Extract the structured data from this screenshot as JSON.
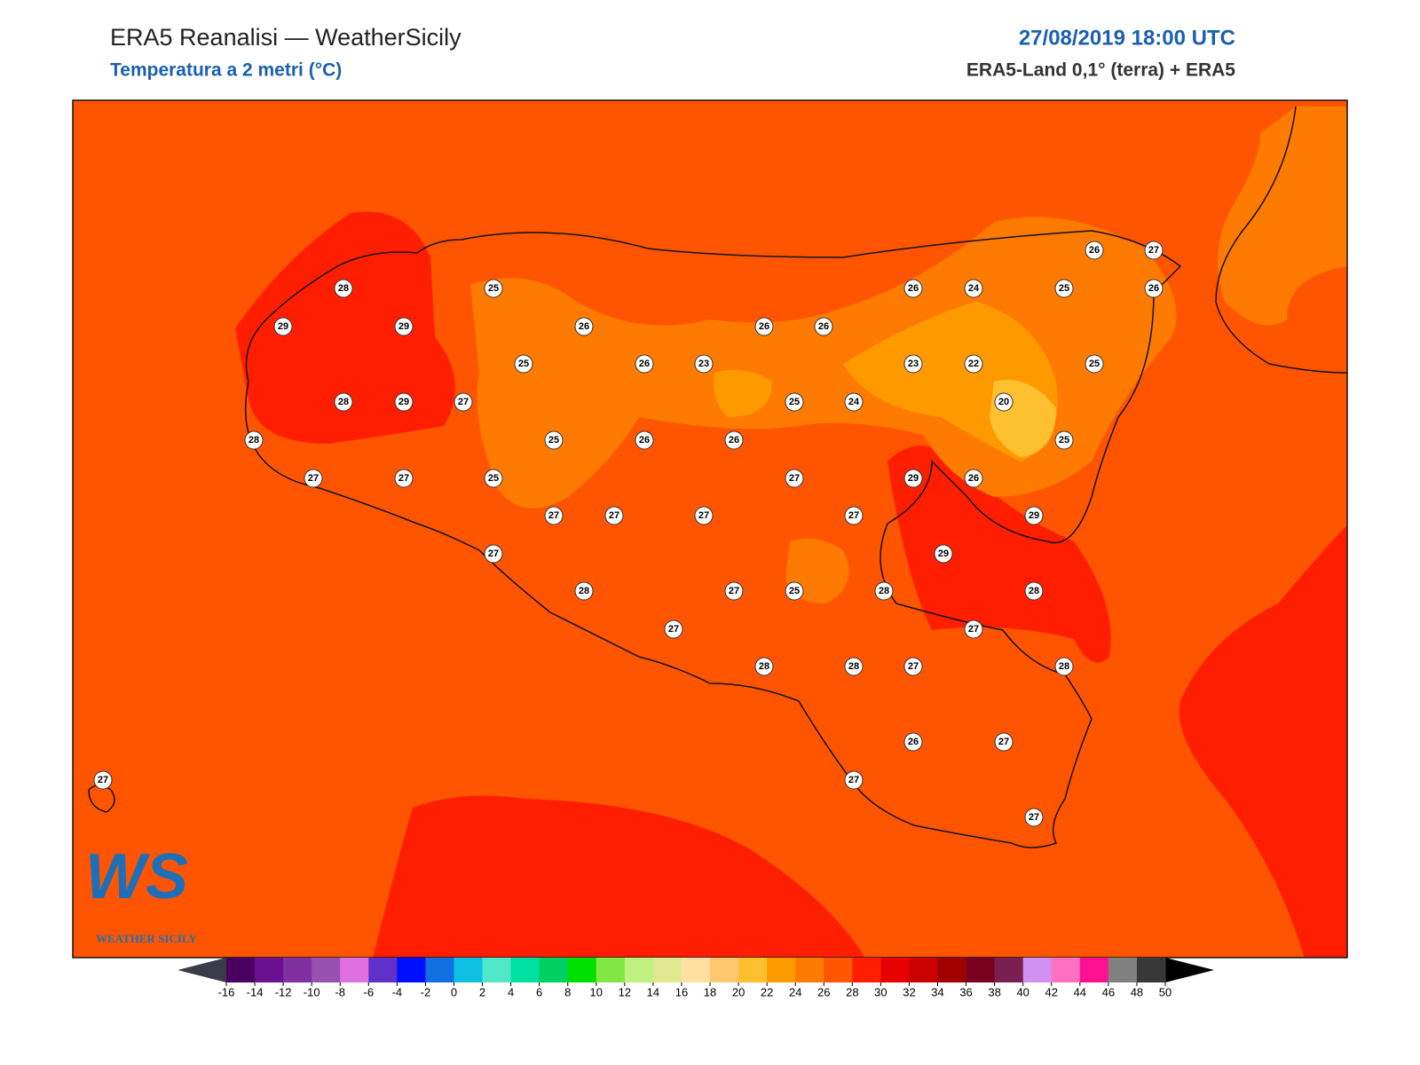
{
  "header": {
    "title": "ERA5 Reanalisi — WeatherSicily",
    "subtitle": "Temperatura a 2 metri (°C)",
    "datetime": "27/08/2019 18:00 UTC",
    "source": "ERA5-Land 0,1° (terra) + ERA5"
  },
  "stations": [
    26,
    27,
    28,
    25,
    26,
    24,
    25,
    26,
    29,
    29,
    26,
    26,
    26,
    25,
    26,
    23,
    23,
    22,
    25,
    28,
    29,
    27,
    25,
    24,
    20,
    28,
    25,
    26,
    26,
    25,
    27,
    27,
    25,
    27,
    29,
    26,
    27,
    27,
    27,
    27,
    29,
    27,
    29,
    28,
    27,
    25,
    28,
    28,
    27,
    27,
    28,
    28,
    27,
    28,
    26,
    27,
    27,
    27,
    27
  ],
  "colorbar": {
    "ticks": [
      -16,
      -14,
      -12,
      -10,
      -8,
      -6,
      -4,
      -2,
      0,
      2,
      4,
      6,
      8,
      10,
      12,
      14,
      16,
      18,
      20,
      22,
      24,
      26,
      28,
      30,
      32,
      34,
      36,
      38,
      40,
      42,
      44,
      46,
      48,
      50
    ],
    "colors": [
      "#4a0060",
      "#6a1090",
      "#8030a0",
      "#9a50b0",
      "#e070e0",
      "#6030c8",
      "#0010ff",
      "#1070e0",
      "#10c0e0",
      "#50e8c8",
      "#00e0a0",
      "#00d060",
      "#00e000",
      "#80e840",
      "#c0f080",
      "#e0e890",
      "#ffe0a0",
      "#ffc870",
      "#ffc030",
      "#ff9900",
      "#ff7a00",
      "#ff5500",
      "#ff1e00",
      "#e60000",
      "#c80000",
      "#a00000",
      "#7a0020",
      "#7a2050",
      "#d090f0",
      "#ff70c0",
      "#ff1090",
      "#808080",
      "#383838"
    ]
  },
  "logo": {
    "mark": "WS",
    "name": "WEATHER SICILY"
  }
}
